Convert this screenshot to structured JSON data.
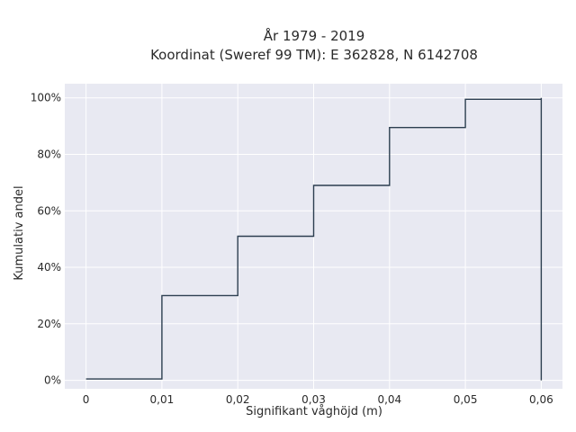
{
  "chart_data": {
    "type": "line",
    "step": "post",
    "title": "År 1979 - 2019",
    "subtitle": "Koordinat (Sweref 99 TM): E 362828, N 6142708",
    "xlabel": "Signifikant våghöjd (m)",
    "ylabel": "Kumulativ andel",
    "xlim": [
      -0.0028,
      0.0628
    ],
    "ylim": [
      -0.03,
      1.05
    ],
    "x_ticks": [
      0,
      0.01,
      0.02,
      0.03,
      0.04,
      0.05,
      0.06
    ],
    "x_tick_labels": [
      "0",
      "0,01",
      "0,02",
      "0,03",
      "0,04",
      "0,05",
      "0,06"
    ],
    "y_ticks": [
      0,
      0.2,
      0.4,
      0.6,
      0.8,
      1.0
    ],
    "y_tick_labels": [
      "0%",
      "20%",
      "40%",
      "60%",
      "80%",
      "100%"
    ],
    "x": [
      0,
      0.01,
      0.02,
      0.03,
      0.04,
      0.05,
      0.06,
      0.06
    ],
    "y": [
      0.005,
      0.3,
      0.51,
      0.69,
      0.895,
      0.995,
      1.0,
      0.0
    ],
    "grid": true,
    "colors": {
      "plot_bg": "#e8e9f2",
      "grid": "#ffffff",
      "line": "#2c3e50"
    }
  }
}
